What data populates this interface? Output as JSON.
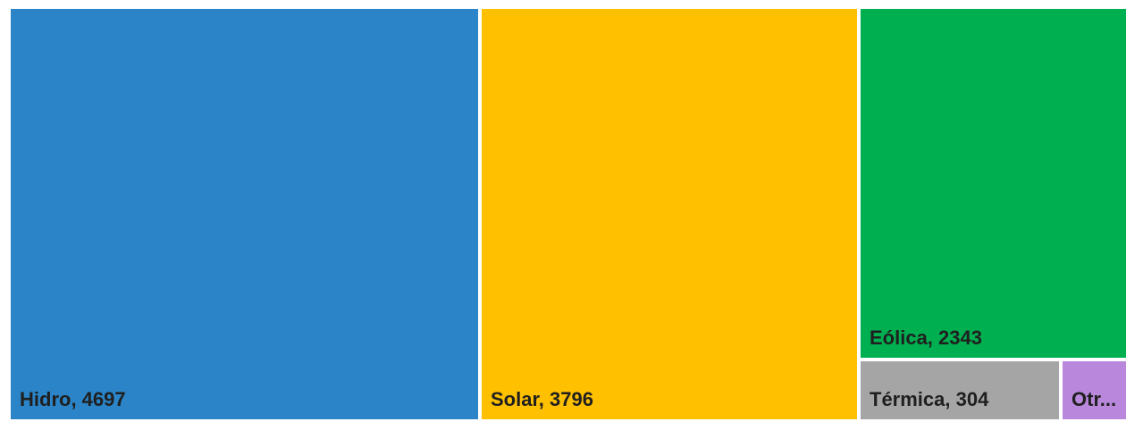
{
  "chart_data": {
    "type": "treemap",
    "title": "",
    "items": [
      {
        "label": "Hidro",
        "value": 4697,
        "display": "Hidro, 4697",
        "color": "#2A84C7"
      },
      {
        "label": "Solar",
        "value": 3796,
        "display": "Solar, 3796",
        "color": "#FFC000"
      },
      {
        "label": "Eólica",
        "value": 2343,
        "display": "Eólica, 2343",
        "color": "#00B050"
      },
      {
        "label": "Térmica",
        "value": 304,
        "display": "Térmica, 304",
        "color": "#A5A5A5"
      },
      {
        "label": "Otr...",
        "value": null,
        "display": "Otr...",
        "color": "#B988DD"
      }
    ],
    "label_color": "#1F1F1F",
    "legend": "none",
    "grid": false
  }
}
